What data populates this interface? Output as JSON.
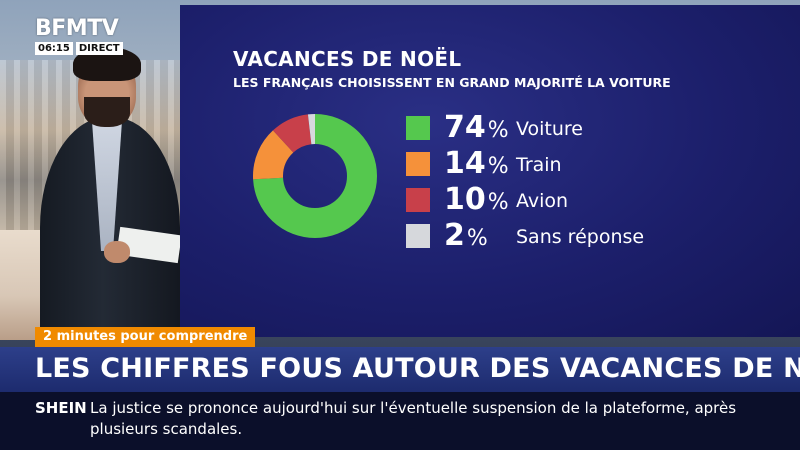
{
  "channel": {
    "logo": "BFMTV",
    "time": "06:15",
    "status": "DIRECT"
  },
  "graphic": {
    "title": "VACANCES DE NOËL",
    "subtitle": "LES FRANÇAIS CHOISISSENT EN GRAND MAJORITÉ LA VOITURE",
    "percent_symbol": "%"
  },
  "chart_data": {
    "type": "pie",
    "title": "VACANCES DE NOËL",
    "subtitle": "LES FRANÇAIS CHOISISSENT EN GRAND MAJORITÉ LA VOITURE",
    "categories": [
      "Voiture",
      "Train",
      "Avion",
      "Sans réponse"
    ],
    "values": [
      74,
      14,
      10,
      2
    ],
    "colors": [
      "#55c84e",
      "#f5913a",
      "#c8404a",
      "#d6d8dc"
    ],
    "donut": true,
    "legend_position": "right"
  },
  "lower_third": {
    "tag": "2 minutes pour comprendre",
    "headline": "LES CHIFFRES FOUS AUTOUR DES VACANCES DE NOËL",
    "ticker_source": "SHEIN",
    "ticker_text": "La justice se prononce aujourd'hui sur l'éventuelle suspension de la plateforme, après plusieurs scandales."
  }
}
